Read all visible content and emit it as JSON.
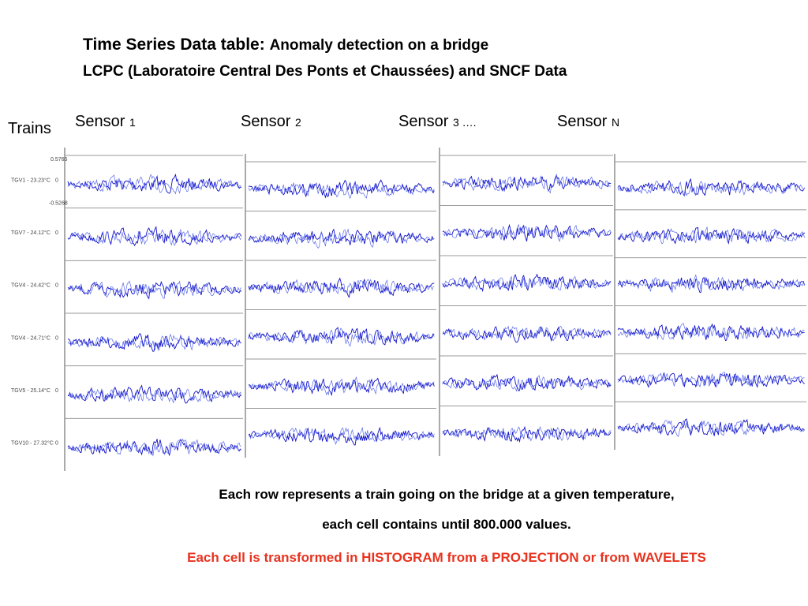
{
  "header": {
    "title": "Time Series Data table:",
    "subtitle": "Anomaly detection on a bridge",
    "line2": "LCPC (Laboratoire Central Des Ponts et Chaussées) and SNCF Data"
  },
  "rows_title": "Trains",
  "sensors": [
    {
      "name": "Sensor",
      "index": "1"
    },
    {
      "name": "Sensor",
      "index": "2"
    },
    {
      "name": "Sensor",
      "index": "3 …."
    },
    {
      "name": "Sensor",
      "index": "N"
    }
  ],
  "trains": [
    "TGV1 - 23.23°C",
    "TGV7 - 24.12°C",
    "TGV4 - 24.42°C",
    "TGV4 - 24.71°C",
    "TGV5 - 25.14°C",
    "TGV10 - 27.32°C"
  ],
  "axis_labels": {
    "top": "0.5766",
    "zero": "0",
    "bottom": "-0.5268"
  },
  "footer": {
    "line1": "Each row represents a train going on the bridge at a given temperature,",
    "line2": "each cell contains until  800.000 values.",
    "line3": "Each cell is transformed in HISTOGRAM  from a PROJECTION  or from WAVELETS"
  }
}
